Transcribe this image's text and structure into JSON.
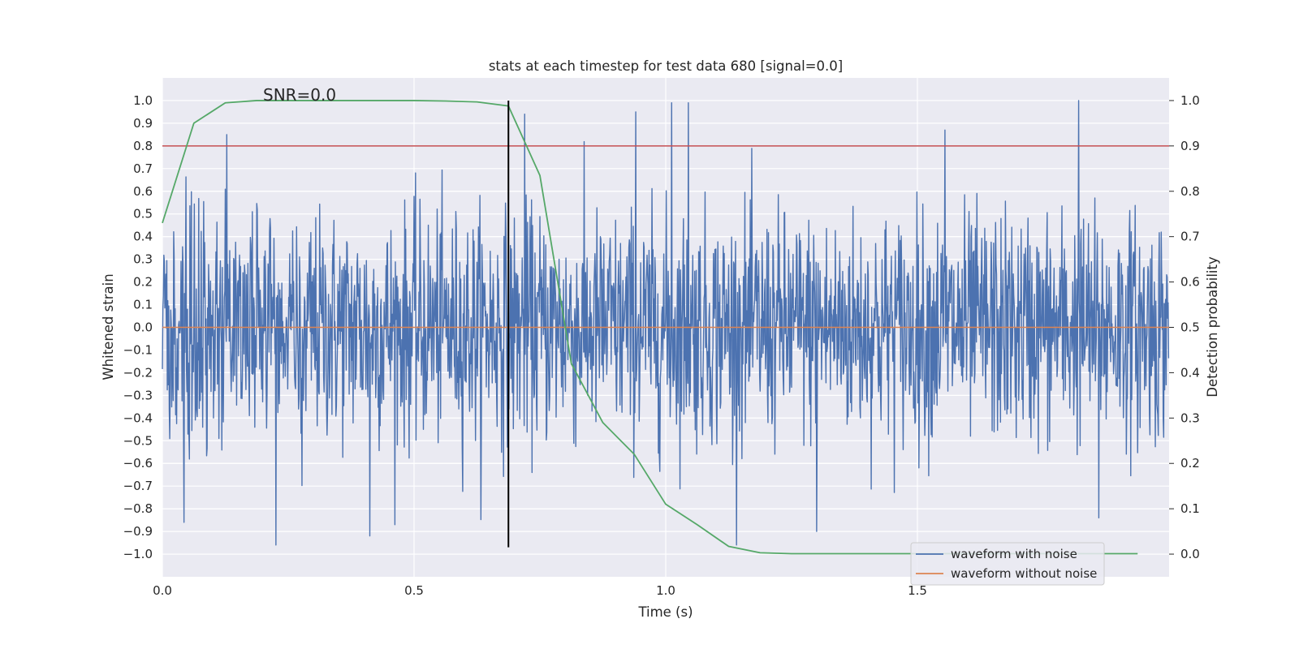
{
  "chart_data": {
    "type": "line",
    "title": "stats at each timestep for test data 680 [signal=0.0]",
    "xlabel": "Time (s)",
    "ylabel": "Whitened strain",
    "y2label": "Detection probability",
    "xlim": [
      0.0,
      2.0
    ],
    "ylim": [
      -1.1,
      1.1
    ],
    "y2lim": [
      -0.05,
      1.05
    ],
    "xticks": [
      0.0,
      0.5,
      1.0,
      1.5
    ],
    "xtick_labels": [
      "0.0",
      "0.5",
      "1.0",
      "1.5"
    ],
    "yticks": [
      1.0,
      0.9,
      0.8,
      0.7,
      0.6,
      0.5,
      0.4,
      0.3,
      0.2,
      0.1,
      0.0,
      -0.1,
      -0.2,
      -0.3,
      -0.4,
      -0.5,
      -0.6,
      -0.7,
      -0.8,
      -0.9,
      -1.0
    ],
    "ytick_labels": [
      "1.0",
      "0.9",
      "0.8",
      "0.7",
      "0.6",
      "0.5",
      "0.4",
      "0.3",
      "0.2",
      "0.1",
      "0.0",
      "−0.1",
      "−0.2",
      "−0.3",
      "−0.4",
      "−0.5",
      "−0.6",
      "−0.7",
      "−0.8",
      "−0.9",
      "−1.0"
    ],
    "y2ticks": [
      1.0,
      0.9,
      0.8,
      0.7,
      0.6,
      0.5,
      0.4,
      0.3,
      0.2,
      0.1,
      0.0
    ],
    "y2tick_labels": [
      "1.0",
      "0.9",
      "0.8",
      "0.7",
      "0.6",
      "0.5",
      "0.4",
      "0.3",
      "0.2",
      "0.1",
      "0.0"
    ],
    "grid": true,
    "annotation": {
      "text": "SNR=0.0",
      "x": 0.2,
      "y": 1.0
    },
    "threshold_line": {
      "axis": "y2",
      "value": 0.9,
      "color": "#c44e52"
    },
    "marker_line": {
      "x": 0.6875,
      "ymin": -0.97,
      "ymax": 1.0,
      "color": "#000000"
    },
    "series": [
      {
        "name": "waveform with noise",
        "axis": "y",
        "color": "#4c72b0",
        "description": "dense Gaussian noise samples, approx. std 0.25, bounded in [-0.97, 1.0], ~2048 samples over 0 to 2 s",
        "sample_rate": 1024,
        "std": 0.25,
        "peaks": [
          {
            "x": 0.128,
            "y": 0.85
          },
          {
            "x": 0.226,
            "y": -0.96
          },
          {
            "x": 0.412,
            "y": -0.92
          },
          {
            "x": 0.72,
            "y": 0.94
          },
          {
            "x": 0.94,
            "y": 0.95
          },
          {
            "x": 1.012,
            "y": 0.99
          },
          {
            "x": 1.045,
            "y": 0.99
          },
          {
            "x": 1.3,
            "y": -0.9
          },
          {
            "x": 1.555,
            "y": 0.87
          },
          {
            "x": 1.82,
            "y": 1.0
          },
          {
            "x": 1.86,
            "y": -0.84
          },
          {
            "x": 0.043,
            "y": -0.86
          }
        ]
      },
      {
        "name": "waveform without noise",
        "axis": "y",
        "color": "#dd8452",
        "x": [
          0.0,
          2.0
        ],
        "y": [
          0.0,
          0.0
        ]
      },
      {
        "name": "detection probability",
        "axis": "y2",
        "color": "#55a868",
        "x": [
          0.0,
          0.0625,
          0.125,
          0.1875,
          0.25,
          0.3125,
          0.375,
          0.4375,
          0.5,
          0.5625,
          0.625,
          0.6875,
          0.75,
          0.8125,
          0.875,
          0.9375,
          1.0,
          1.0625,
          1.125,
          1.1875,
          1.25,
          1.3125,
          1.375,
          1.4375,
          1.5,
          1.5625,
          1.625,
          1.6875,
          1.75,
          1.8125,
          1.875,
          1.9375
        ],
        "y": [
          0.73,
          0.95,
          0.995,
          1.0,
          1.0,
          1.0,
          1.0,
          1.0,
          1.0,
          0.999,
          0.997,
          0.988,
          0.835,
          0.42,
          0.29,
          0.22,
          0.11,
          0.065,
          0.017,
          0.003,
          0.001,
          0.001,
          0.001,
          0.001,
          0.001,
          0.001,
          0.001,
          0.001,
          0.001,
          0.001,
          0.001,
          0.001
        ]
      }
    ],
    "legend": {
      "position": "lower-right",
      "entries": [
        {
          "label": "waveform with noise",
          "color": "#4c72b0"
        },
        {
          "label": "waveform without noise",
          "color": "#dd8452"
        }
      ]
    }
  }
}
